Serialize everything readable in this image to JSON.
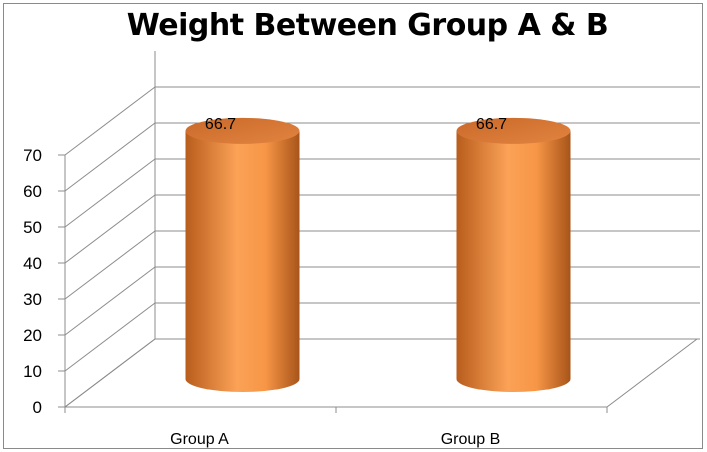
{
  "chart_data": {
    "type": "bar",
    "style": "3d-cylinder",
    "title": "Weight Between Group A & B",
    "categories": [
      "Group A",
      "Group B"
    ],
    "values": [
      66.7,
      66.7
    ],
    "data_labels": [
      "66.7",
      "66.7"
    ],
    "ylim": [
      0,
      70
    ],
    "yticks": [
      0,
      10,
      20,
      30,
      40,
      50,
      60,
      70
    ],
    "xlabel": "",
    "ylabel": "",
    "grid": true,
    "legend": "none",
    "colors": {
      "bar": "#f79646",
      "bar_dark": "#a8541a",
      "bar_light": "#fbb578",
      "grid": "#8c8c8c"
    }
  }
}
